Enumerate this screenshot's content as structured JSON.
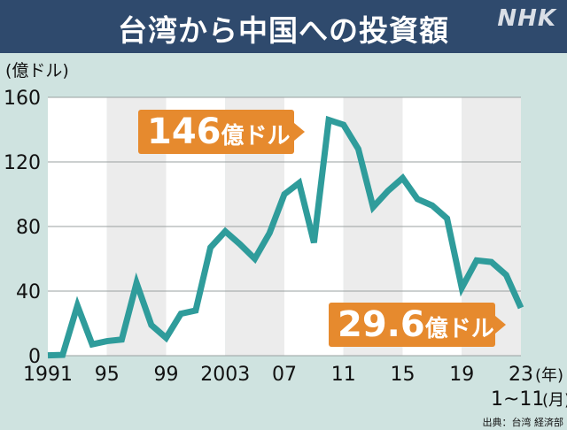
{
  "header": {
    "title": "台湾から中国への投資額",
    "logo": "NHK"
  },
  "colors": {
    "header_bg": "#2f4a6d",
    "page_bg": "#cfe3e0",
    "line": "#2f9c9b",
    "callout": "#e68a2e"
  },
  "chart_data": {
    "type": "line",
    "ylabel": "(億ドル)",
    "ylim": [
      0,
      160
    ],
    "yticks": [
      0,
      40,
      80,
      120,
      160
    ],
    "xticks": [
      {
        "year": 1991,
        "label": "1991"
      },
      {
        "year": 1995,
        "label": "95"
      },
      {
        "year": 1999,
        "label": "99"
      },
      {
        "year": 2003,
        "label": "2003"
      },
      {
        "year": 2007,
        "label": "07"
      },
      {
        "year": 2011,
        "label": "11"
      },
      {
        "year": 2015,
        "label": "15"
      },
      {
        "year": 2019,
        "label": "19"
      },
      {
        "year": 2023,
        "label": "23"
      }
    ],
    "xunit": "(年)",
    "xnote": "1~11",
    "xnote_unit": "(月)",
    "grid": "horizontal",
    "x": [
      1991,
      1992,
      1993,
      1994,
      1995,
      1996,
      1997,
      1998,
      1999,
      2000,
      2001,
      2002,
      2003,
      2004,
      2005,
      2006,
      2007,
      2008,
      2009,
      2010,
      2011,
      2012,
      2013,
      2014,
      2015,
      2016,
      2017,
      2018,
      2019,
      2020,
      2021,
      2022,
      2023
    ],
    "values": [
      0.2,
      0.5,
      31,
      7,
      9,
      10,
      45,
      19,
      11,
      26,
      28,
      67,
      77,
      69,
      60,
      76,
      100,
      107,
      70,
      146,
      143,
      128,
      92,
      102,
      110,
      97,
      93,
      85,
      42,
      59,
      58,
      50,
      29.6
    ],
    "annotations": [
      {
        "text_num": "146",
        "text_unit": "億ドル",
        "year": 2010,
        "value": 146
      },
      {
        "text_num": "29.6",
        "text_unit": "億ドル",
        "year": 2023,
        "value": 29.6
      }
    ],
    "source": "出典：台湾 経済部"
  }
}
